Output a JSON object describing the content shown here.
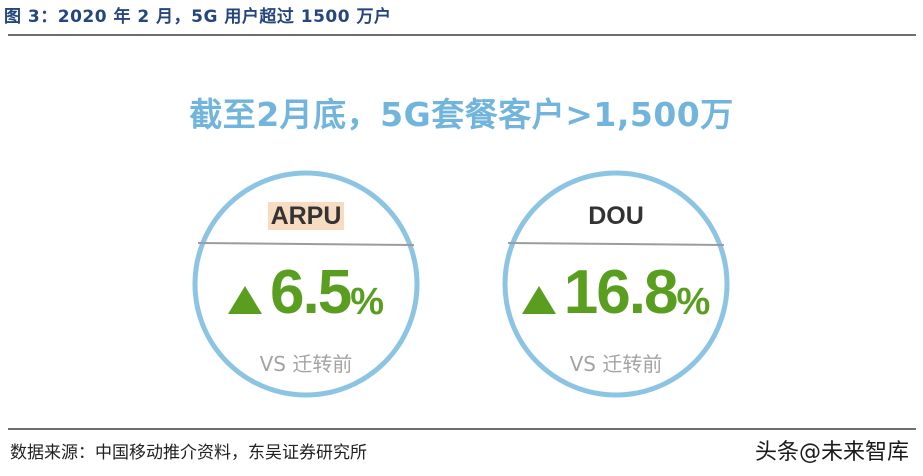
{
  "figure": {
    "title": "图 3：2020 年 2 月，5G 用户超过 1500 万户"
  },
  "headline": "截至2月底，5G套餐客户>1,500万",
  "metrics": [
    {
      "label": "ARPU",
      "label_highlighted": true,
      "direction": "up",
      "value": "6.5",
      "unit": "%",
      "compare_text": "VS 迁转前",
      "icon": "up-triangle-icon"
    },
    {
      "label": "DOU",
      "label_highlighted": false,
      "direction": "up",
      "value": "16.8",
      "unit": "%",
      "compare_text": "VS 迁转前",
      "icon": "up-triangle-icon"
    }
  ],
  "source": "数据来源：中国移动推介资料，东吴证券研究所",
  "watermark": "头条@未来智库",
  "colors": {
    "title": "#24467c",
    "headline": "#72b5dc",
    "ring": "#8cc4e3",
    "growth": "#5a9e1f",
    "label_highlight": "#f8dcc2",
    "muted": "#a3a3a3"
  }
}
